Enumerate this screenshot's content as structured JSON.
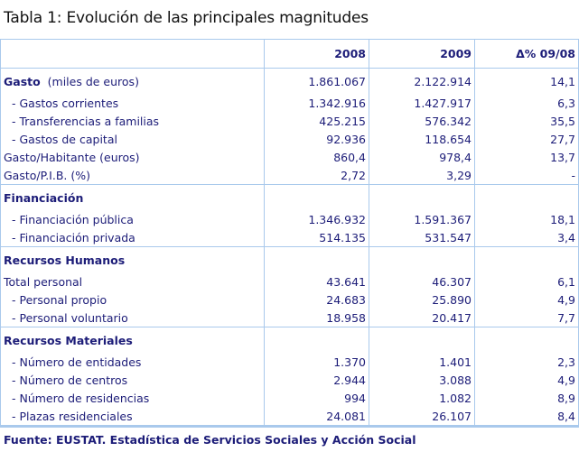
{
  "title": "Tabla 1: Evolución de las principales magnitudes",
  "columns": [
    "",
    "2008",
    "2009",
    "Δ% 09/08"
  ],
  "gasto": {
    "label": "Gasto",
    "unit": "(miles de euros)",
    "values": [
      "1.861.067",
      "2.122.914",
      "14,1"
    ],
    "rows": [
      {
        "label": "- Gastos corrientes",
        "values": [
          "1.342.916",
          "1.427.917",
          "6,3"
        ],
        "indent": true
      },
      {
        "label": "- Transferencias a familias",
        "values": [
          "425.215",
          "576.342",
          "35,5"
        ],
        "indent": true
      },
      {
        "label": "- Gastos de capital",
        "values": [
          "92.936",
          "118.654",
          "27,7"
        ],
        "indent": true
      },
      {
        "label": "Gasto/Habitante (euros)",
        "values": [
          "860,4",
          "978,4",
          "13,7"
        ],
        "indent": false
      },
      {
        "label": "Gasto/P.I.B. (%)",
        "values": [
          "2,72",
          "3,29",
          "-"
        ],
        "indent": false
      }
    ]
  },
  "sections": [
    {
      "label": "Financiación",
      "rows": [
        {
          "label": "- Financiación pública",
          "values": [
            "1.346.932",
            "1.591.367",
            "18,1"
          ],
          "indent": true
        },
        {
          "label": "- Financiación privada",
          "values": [
            "514.135",
            "531.547",
            "3,4"
          ],
          "indent": true
        }
      ]
    },
    {
      "label": "Recursos Humanos",
      "rows": [
        {
          "label": "Total personal",
          "values": [
            "43.641",
            "46.307",
            "6,1"
          ],
          "indent": false
        },
        {
          "label": "- Personal propio",
          "values": [
            "24.683",
            "25.890",
            "4,9"
          ],
          "indent": true
        },
        {
          "label": "- Personal voluntario",
          "values": [
            "18.958",
            "20.417",
            "7,7"
          ],
          "indent": true
        }
      ]
    },
    {
      "label": "Recursos Materiales",
      "rows": [
        {
          "label": "- Número de entidades",
          "values": [
            "1.370",
            "1.401",
            "2,3"
          ],
          "indent": true
        },
        {
          "label": "- Número de centros",
          "values": [
            "2.944",
            "3.088",
            "4,9"
          ],
          "indent": true
        },
        {
          "label": "- Número de residencias",
          "values": [
            "994",
            "1.082",
            "8,9"
          ],
          "indent": true
        },
        {
          "label": "- Plazas residenciales",
          "values": [
            "24.081",
            "26.107",
            "8,4"
          ],
          "indent": true
        }
      ]
    }
  ],
  "source": "Fuente: EUSTAT. Estadística de Servicios Sociales y Acción Social",
  "colors": {
    "text": "#1c1c78",
    "border": "#a9c9ec"
  }
}
